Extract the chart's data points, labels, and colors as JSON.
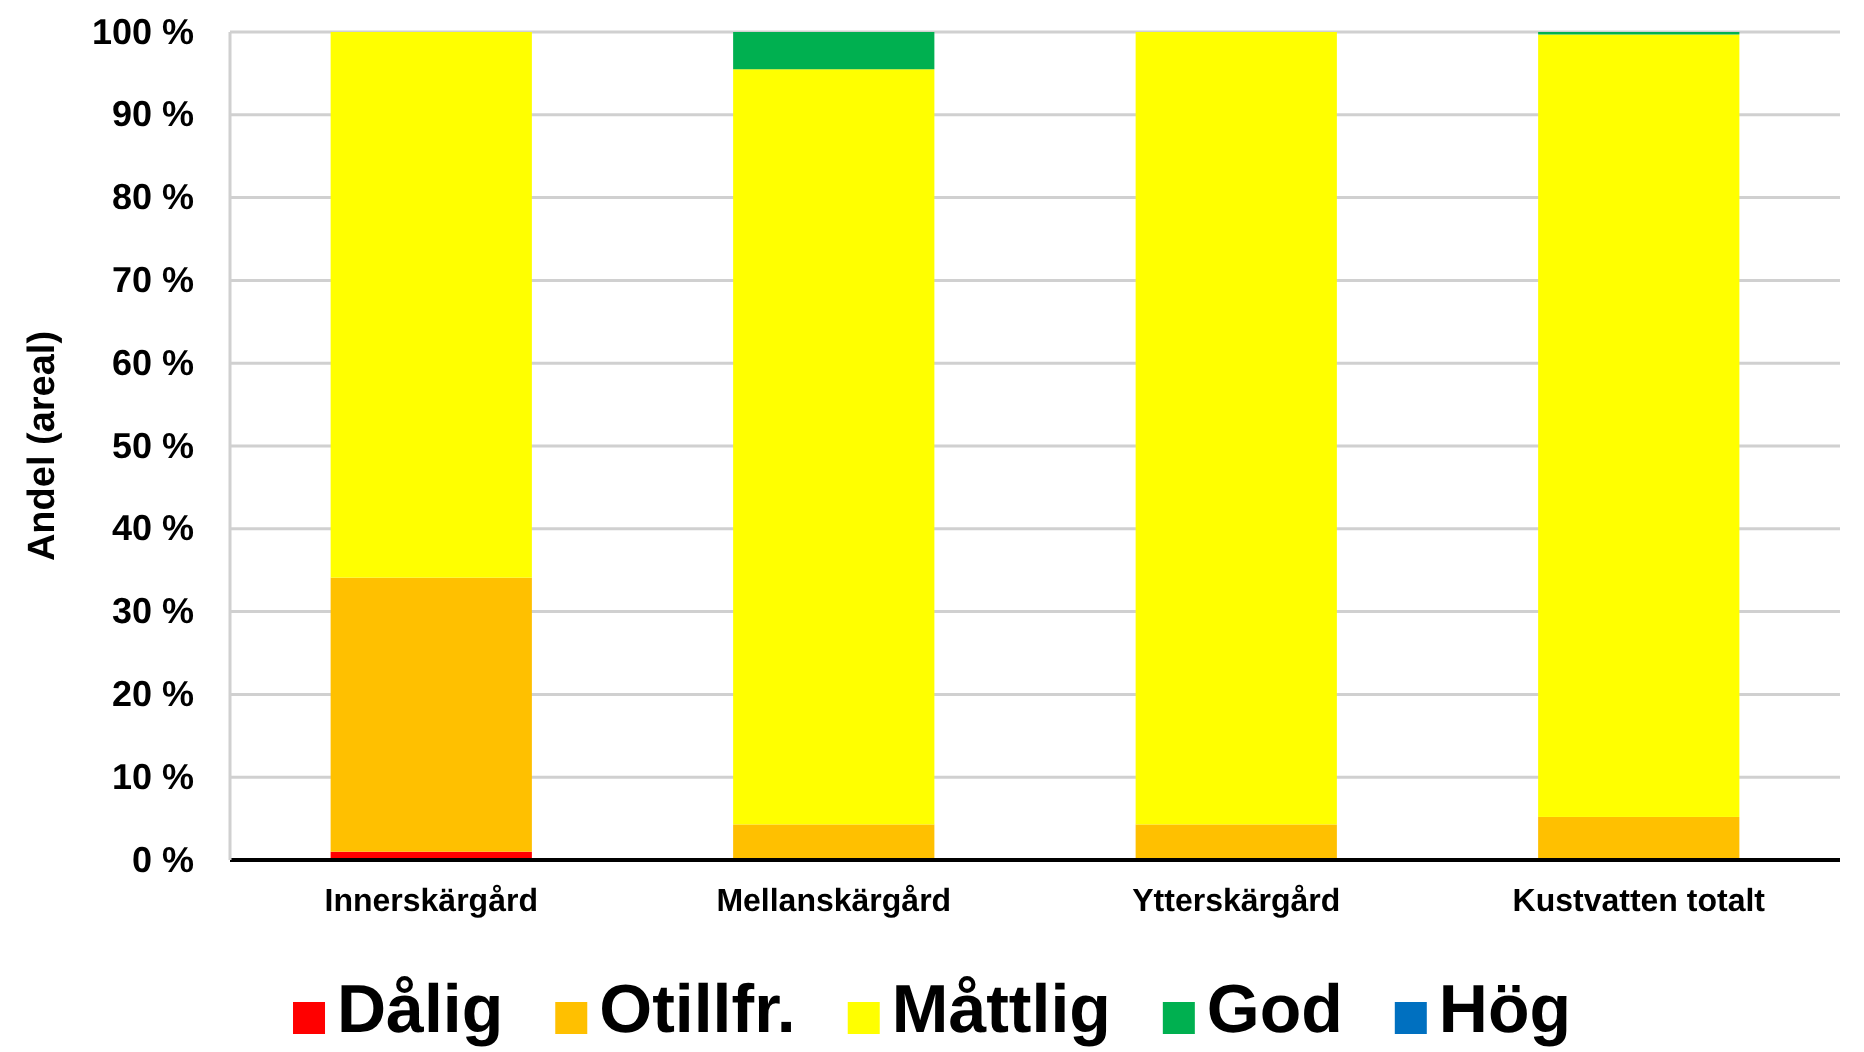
{
  "chart_data": {
    "type": "bar",
    "stacked": true,
    "ylabel": "Andel (areal)",
    "categories": [
      "Innerskärgård",
      "Mellanskärgård",
      "Ytterskärgård",
      "Kustvatten totalt"
    ],
    "series": [
      {
        "name": "Dålig",
        "color": "#ff0000",
        "values": [
          1.0,
          0,
          0,
          0
        ]
      },
      {
        "name": "Otillfr.",
        "color": "#ffc000",
        "values": [
          33.1,
          4.3,
          4.3,
          5.2
        ]
      },
      {
        "name": "Måttlig",
        "color": "#ffff00",
        "values": [
          65.9,
          91.2,
          95.7,
          94.5
        ]
      },
      {
        "name": "God",
        "color": "#00b050",
        "values": [
          0,
          4.5,
          0,
          0.3
        ]
      },
      {
        "name": "Hög",
        "color": "#0070c0",
        "values": [
          0,
          0,
          0,
          0
        ]
      }
    ],
    "ylim": [
      0,
      100
    ],
    "yticks": [
      {
        "value": 0,
        "label": "0 %"
      },
      {
        "value": 10,
        "label": "10 %"
      },
      {
        "value": 20,
        "label": "20 %"
      },
      {
        "value": 30,
        "label": "30 %"
      },
      {
        "value": 40,
        "label": "40 %"
      },
      {
        "value": 50,
        "label": "50 %"
      },
      {
        "value": 60,
        "label": "60 %"
      },
      {
        "value": 70,
        "label": "70 %"
      },
      {
        "value": 80,
        "label": "80 %"
      },
      {
        "value": 90,
        "label": "90 %"
      },
      {
        "value": 100,
        "label": "100 %"
      }
    ],
    "grid": "y",
    "legend": "bottom"
  }
}
